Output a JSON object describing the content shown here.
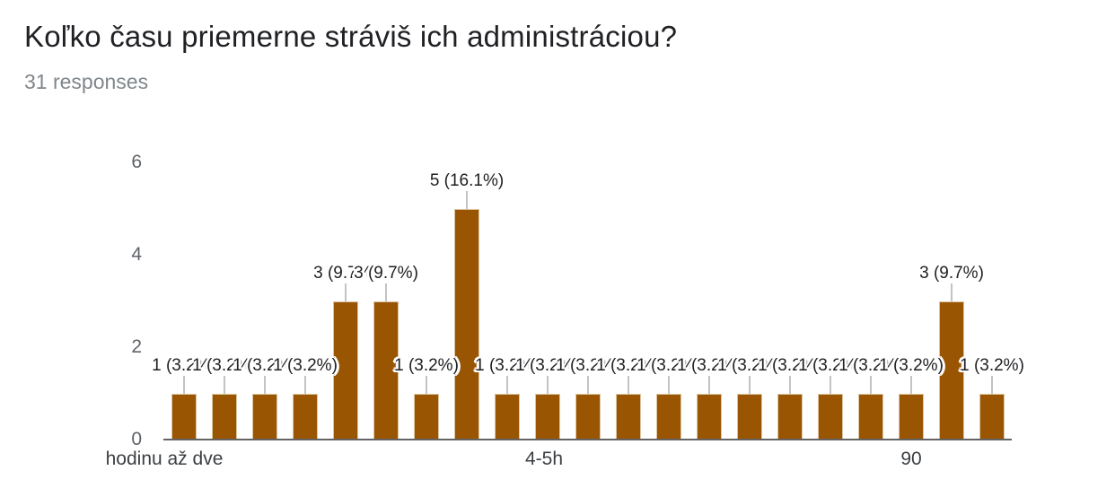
{
  "header": {
    "title": "Koľko času priemerne stráviš ich administráciou?",
    "subtitle": "31 responses"
  },
  "chart_data": {
    "type": "bar",
    "title": "Koľko času priemerne stráviš ich administráciou?",
    "responses_total": 31,
    "values": [
      1,
      1,
      1,
      1,
      3,
      3,
      1,
      5,
      1,
      1,
      1,
      1,
      1,
      1,
      1,
      1,
      1,
      1,
      1,
      3,
      1
    ],
    "bar_labels": [
      "1 (3.2%)",
      "1 (3.2%)",
      "1 (3.2%)",
      "1 (3.2%)",
      "3 (9.7%)",
      "3 (9.7%)",
      "1 (3.2%)",
      "5 (16.1%)",
      "1 (3.2%)",
      "1 (3.2%)",
      "1 (3.2%)",
      "1 (3.2%)",
      "1 (3.2%)",
      "1 (3.2%)",
      "1 (3.2%)",
      "1 (3.2%)",
      "1 (3.2%)",
      "1 (3.2%)",
      "1 (3.2%)",
      "3 (9.7%)",
      "1 (3.2%)"
    ],
    "x_ticks": [
      {
        "label": "hodinu až dve",
        "bar_index": 0,
        "dx": -22
      },
      {
        "label": "4-5h",
        "bar_index": 9,
        "dx": -4
      },
      {
        "label": "90",
        "bar_index": 18,
        "dx": 0
      }
    ],
    "y_ticks": [
      0,
      2,
      4,
      6
    ],
    "ylim": [
      0,
      6
    ],
    "grid": false,
    "legend": "none",
    "bar_color": "#9a5503"
  },
  "colors": {
    "bar": "#9a5503",
    "bar_border": "#dcc5a1",
    "title_text": "#202124",
    "subtitle_text": "#80868b",
    "value_label_text": "#202124",
    "x_tick_text": "#3c4043",
    "y_tick_text": "#5f6368",
    "axis_line": "#636363",
    "leader_line": "#c3c3c3",
    "background": "#ffffff"
  }
}
